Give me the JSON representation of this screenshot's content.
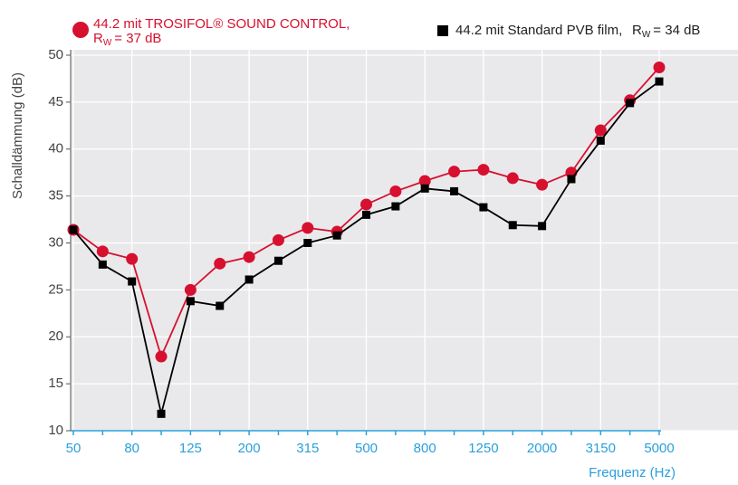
{
  "chart_data": {
    "type": "line",
    "y_label": "Schalldämmung (dB)",
    "x_label": "Frequenz (Hz)",
    "categories": [
      "50",
      null,
      "80",
      null,
      "125",
      null,
      "200",
      null,
      "315",
      null,
      "500",
      null,
      "800",
      null,
      "1250",
      null,
      "2000",
      null,
      "3150",
      null,
      "5000"
    ],
    "series": [
      {
        "name": "44.2 mit TROSIFOL® SOUND CONTROL,",
        "rating": {
          "symbol": "R",
          "subscript": "W",
          "text": "= 37 dB"
        },
        "color": "#d7102f",
        "marker": "circle",
        "values": [
          31.4,
          29.1,
          28.3,
          17.9,
          25.0,
          27.8,
          28.5,
          30.3,
          31.6,
          31.2,
          34.1,
          35.5,
          36.6,
          37.6,
          37.8,
          36.9,
          36.2,
          37.5,
          42.0,
          45.2,
          48.7
        ]
      },
      {
        "name": "44.2 mit Standard PVB film,",
        "rating": {
          "symbol": "R",
          "subscript": "W",
          "text": "= 34 dB"
        },
        "color": "#000000",
        "marker": "square",
        "values": [
          31.4,
          27.7,
          25.9,
          11.8,
          23.8,
          23.3,
          26.1,
          28.1,
          30.0,
          30.8,
          33.0,
          33.9,
          35.8,
          35.5,
          33.8,
          31.9,
          31.8,
          36.8,
          40.9,
          44.9,
          47.2
        ]
      }
    ],
    "ylim": [
      10,
      50
    ],
    "yticks": [
      10,
      15,
      20,
      25,
      30,
      35,
      40,
      45,
      50
    ],
    "grid": true,
    "axis_color": "#2aa0dc"
  }
}
